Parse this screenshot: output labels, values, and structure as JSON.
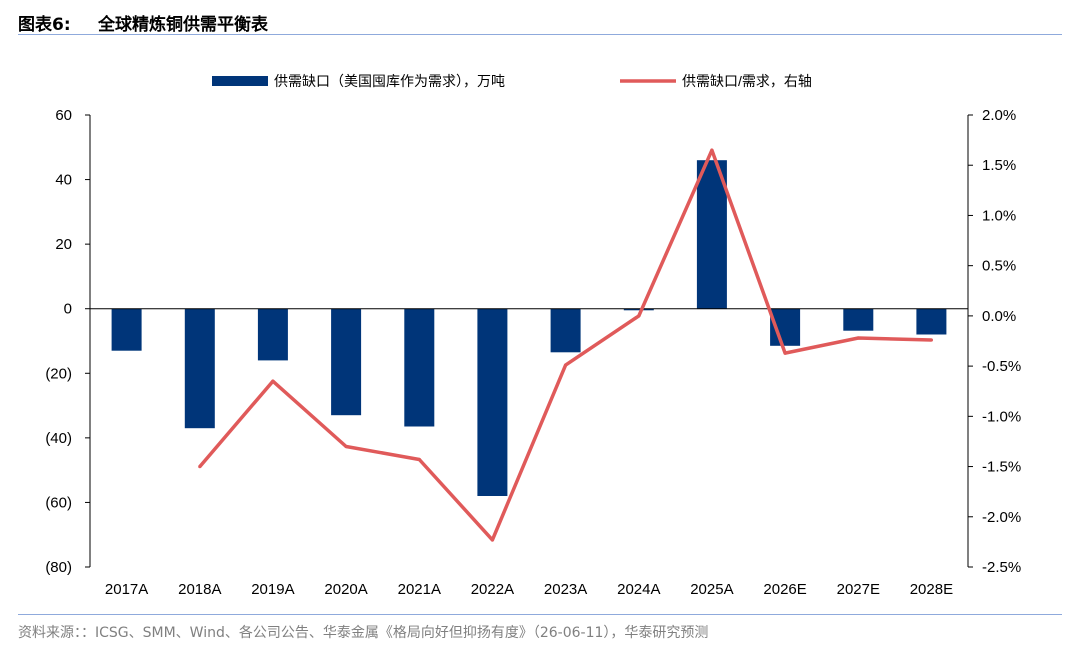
{
  "header": {
    "figure_label": "图表6:",
    "title": "全球精炼铜供需平衡表"
  },
  "source_note": "资料来源：：ICSG、SMM、Wind、各公司公告、华泰金属《格局向好但抑扬有度》（26-06-11），华泰研究预测",
  "colors": {
    "bar": "#003579",
    "line": "#e05a5a",
    "rule": "#8faadc",
    "axis": "#000000"
  },
  "chart_data": {
    "type": "bar+line",
    "categories": [
      "2017A",
      "2018A",
      "2019A",
      "2020A",
      "2021A",
      "2022A",
      "2023A",
      "2024A",
      "2025A",
      "2026E",
      "2027E",
      "2028E"
    ],
    "series": [
      {
        "name": "供需缺口（美国囤库作为需求），万吨",
        "type": "bar",
        "axis": "left",
        "values": [
          -13,
          -37,
          -16,
          -33,
          -36.5,
          -58,
          -13.5,
          -0.5,
          46,
          -11.5,
          -6.8,
          -8
        ]
      },
      {
        "name": "供需缺口/需求，右轴",
        "type": "line",
        "axis": "right",
        "values": [
          null,
          -1.5,
          -0.65,
          -1.3,
          -1.43,
          -2.23,
          -0.49,
          0.0,
          1.65,
          -0.37,
          -0.22,
          -0.24
        ]
      }
    ],
    "left_axis": {
      "ylim": [
        -80,
        60
      ],
      "ticks": [
        60,
        40,
        20,
        0,
        -20,
        -40,
        -60,
        -80
      ],
      "tick_labels": [
        "60",
        "40",
        "20",
        "0",
        "(20)",
        "(40)",
        "(60)",
        "(80)"
      ]
    },
    "right_axis": {
      "ylim": [
        -2.5,
        2.0
      ],
      "ticks": [
        2.0,
        1.5,
        1.0,
        0.5,
        0.0,
        -0.5,
        -1.0,
        -1.5,
        -2.0,
        -2.5
      ],
      "tick_labels": [
        "2.0%",
        "1.5%",
        "1.0%",
        "0.5%",
        "0.0%",
        "-0.5%",
        "-1.0%",
        "-1.5%",
        "-2.0%",
        "-2.5%"
      ]
    },
    "legend_position": "top-center",
    "grid": false
  }
}
